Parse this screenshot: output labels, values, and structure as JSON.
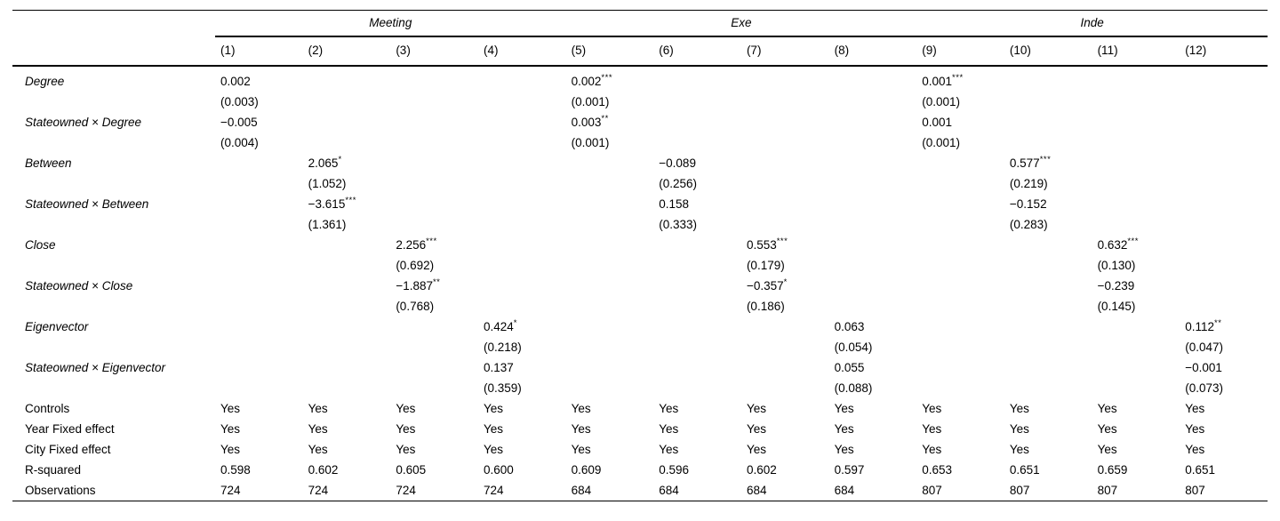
{
  "table": {
    "groups": [
      {
        "label": "Meeting",
        "span": 4
      },
      {
        "label": "Exe",
        "span": 4
      },
      {
        "label": "Inde",
        "span": 4
      }
    ],
    "column_numbers": [
      "(1)",
      "(2)",
      "(3)",
      "(4)",
      "(5)",
      "(6)",
      "(7)",
      "(8)",
      "(9)",
      "(10)",
      "(11)",
      "(12)"
    ],
    "coefficient_rows": [
      {
        "label": "Degree",
        "estimates": [
          "0.002",
          "",
          "",
          "",
          "0.002",
          "",
          "",
          "",
          "0.001",
          "",
          "",
          ""
        ],
        "stars": [
          "",
          "",
          "",
          "",
          "***",
          "",
          "",
          "",
          "***",
          "",
          "",
          ""
        ],
        "se": [
          "(0.003)",
          "",
          "",
          "",
          "(0.001)",
          "",
          "",
          "",
          "(0.001)",
          "",
          "",
          ""
        ]
      },
      {
        "label": "Stateowned × Degree",
        "estimates": [
          "−0.005",
          "",
          "",
          "",
          "0.003",
          "",
          "",
          "",
          "0.001",
          "",
          "",
          ""
        ],
        "stars": [
          "",
          "",
          "",
          "",
          "**",
          "",
          "",
          "",
          "",
          "",
          "",
          ""
        ],
        "se": [
          "(0.004)",
          "",
          "",
          "",
          "(0.001)",
          "",
          "",
          "",
          "(0.001)",
          "",
          "",
          ""
        ]
      },
      {
        "label": "Between",
        "estimates": [
          "",
          "2.065",
          "",
          "",
          "",
          "−0.089",
          "",
          "",
          "",
          "0.577",
          "",
          ""
        ],
        "stars": [
          "",
          "*",
          "",
          "",
          "",
          "",
          "",
          "",
          "",
          "***",
          "",
          ""
        ],
        "se": [
          "",
          "(1.052)",
          "",
          "",
          "",
          "(0.256)",
          "",
          "",
          "",
          "(0.219)",
          "",
          ""
        ]
      },
      {
        "label": "Stateowned × Between",
        "estimates": [
          "",
          "−3.615",
          "",
          "",
          "",
          "0.158",
          "",
          "",
          "",
          "−0.152",
          "",
          ""
        ],
        "stars": [
          "",
          "***",
          "",
          "",
          "",
          "",
          "",
          "",
          "",
          "",
          "",
          ""
        ],
        "se": [
          "",
          "(1.361)",
          "",
          "",
          "",
          "(0.333)",
          "",
          "",
          "",
          "(0.283)",
          "",
          ""
        ]
      },
      {
        "label": "Close",
        "estimates": [
          "",
          "",
          "2.256",
          "",
          "",
          "",
          "0.553",
          "",
          "",
          "",
          "0.632",
          ""
        ],
        "stars": [
          "",
          "",
          "***",
          "",
          "",
          "",
          "***",
          "",
          "",
          "",
          "***",
          ""
        ],
        "se": [
          "",
          "",
          "(0.692)",
          "",
          "",
          "",
          "(0.179)",
          "",
          "",
          "",
          "(0.130)",
          ""
        ]
      },
      {
        "label": "Stateowned × Close",
        "estimates": [
          "",
          "",
          "−1.887",
          "",
          "",
          "",
          "−0.357",
          "",
          "",
          "",
          "−0.239",
          ""
        ],
        "stars": [
          "",
          "",
          "**",
          "",
          "",
          "",
          "*",
          "",
          "",
          "",
          "",
          ""
        ],
        "se": [
          "",
          "",
          "(0.768)",
          "",
          "",
          "",
          "(0.186)",
          "",
          "",
          "",
          "(0.145)",
          ""
        ]
      },
      {
        "label": "Eigenvector",
        "estimates": [
          "",
          "",
          "",
          "0.424",
          "",
          "",
          "",
          "0.063",
          "",
          "",
          "",
          "0.112"
        ],
        "stars": [
          "",
          "",
          "",
          "*",
          "",
          "",
          "",
          "",
          "",
          "",
          "",
          "**"
        ],
        "se": [
          "",
          "",
          "",
          "(0.218)",
          "",
          "",
          "",
          "(0.054)",
          "",
          "",
          "",
          "(0.047)"
        ]
      },
      {
        "label": "Stateowned × Eigenvector",
        "estimates": [
          "",
          "",
          "",
          "0.137",
          "",
          "",
          "",
          "0.055",
          "",
          "",
          "",
          "−0.001"
        ],
        "stars": [
          "",
          "",
          "",
          "",
          "",
          "",
          "",
          "",
          "",
          "",
          "",
          ""
        ],
        "se": [
          "",
          "",
          "",
          "(0.359)",
          "",
          "",
          "",
          "(0.088)",
          "",
          "",
          "",
          "(0.073)"
        ]
      }
    ],
    "summary_rows": [
      {
        "label": "Controls",
        "values": [
          "Yes",
          "Yes",
          "Yes",
          "Yes",
          "Yes",
          "Yes",
          "Yes",
          "Yes",
          "Yes",
          "Yes",
          "Yes",
          "Yes"
        ]
      },
      {
        "label": "Year Fixed effect",
        "values": [
          "Yes",
          "Yes",
          "Yes",
          "Yes",
          "Yes",
          "Yes",
          "Yes",
          "Yes",
          "Yes",
          "Yes",
          "Yes",
          "Yes"
        ]
      },
      {
        "label": "City Fixed effect",
        "values": [
          "Yes",
          "Yes",
          "Yes",
          "Yes",
          "Yes",
          "Yes",
          "Yes",
          "Yes",
          "Yes",
          "Yes",
          "Yes",
          "Yes"
        ]
      },
      {
        "label": "R-squared",
        "values": [
          "0.598",
          "0.602",
          "0.605",
          "0.600",
          "0.609",
          "0.596",
          "0.602",
          "0.597",
          "0.653",
          "0.651",
          "0.659",
          "0.651"
        ]
      },
      {
        "label": "Observations",
        "values": [
          "724",
          "724",
          "724",
          "724",
          "684",
          "684",
          "684",
          "684",
          "807",
          "807",
          "807",
          "807"
        ]
      }
    ],
    "colors": {
      "text": "#000000",
      "background": "#ffffff",
      "rule": "#000000"
    }
  }
}
